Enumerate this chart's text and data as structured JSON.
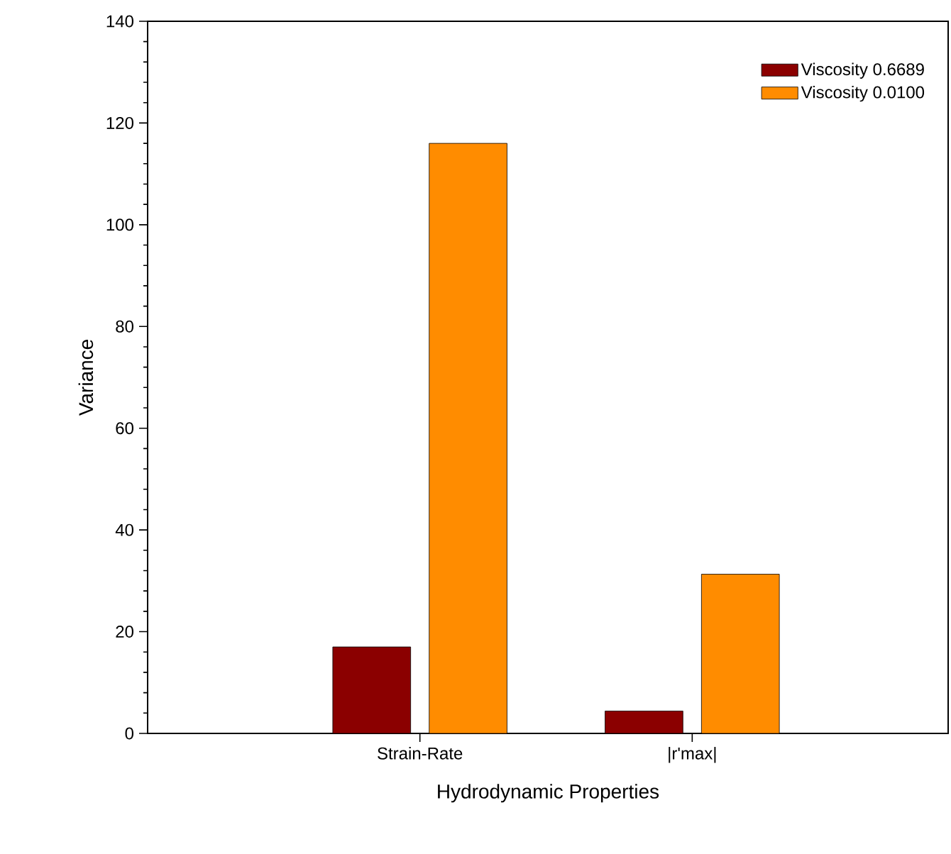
{
  "chart_data": {
    "type": "bar",
    "xlabel": "Hydrodynamic Properties",
    "ylabel": "Variance",
    "categories": [
      "Strain-Rate",
      "|r'max|"
    ],
    "series": [
      {
        "name": "Viscosity 0.6689",
        "color": "#8b0000",
        "values": [
          17.0,
          4.4
        ]
      },
      {
        "name": "Viscosity 0.0100",
        "color": "#ff8c00",
        "values": [
          116.0,
          31.3
        ]
      }
    ],
    "ylim": [
      0,
      140
    ],
    "yticks": [
      0,
      20,
      40,
      60,
      80,
      100,
      120,
      140
    ],
    "legend": "top right",
    "grid": false
  }
}
